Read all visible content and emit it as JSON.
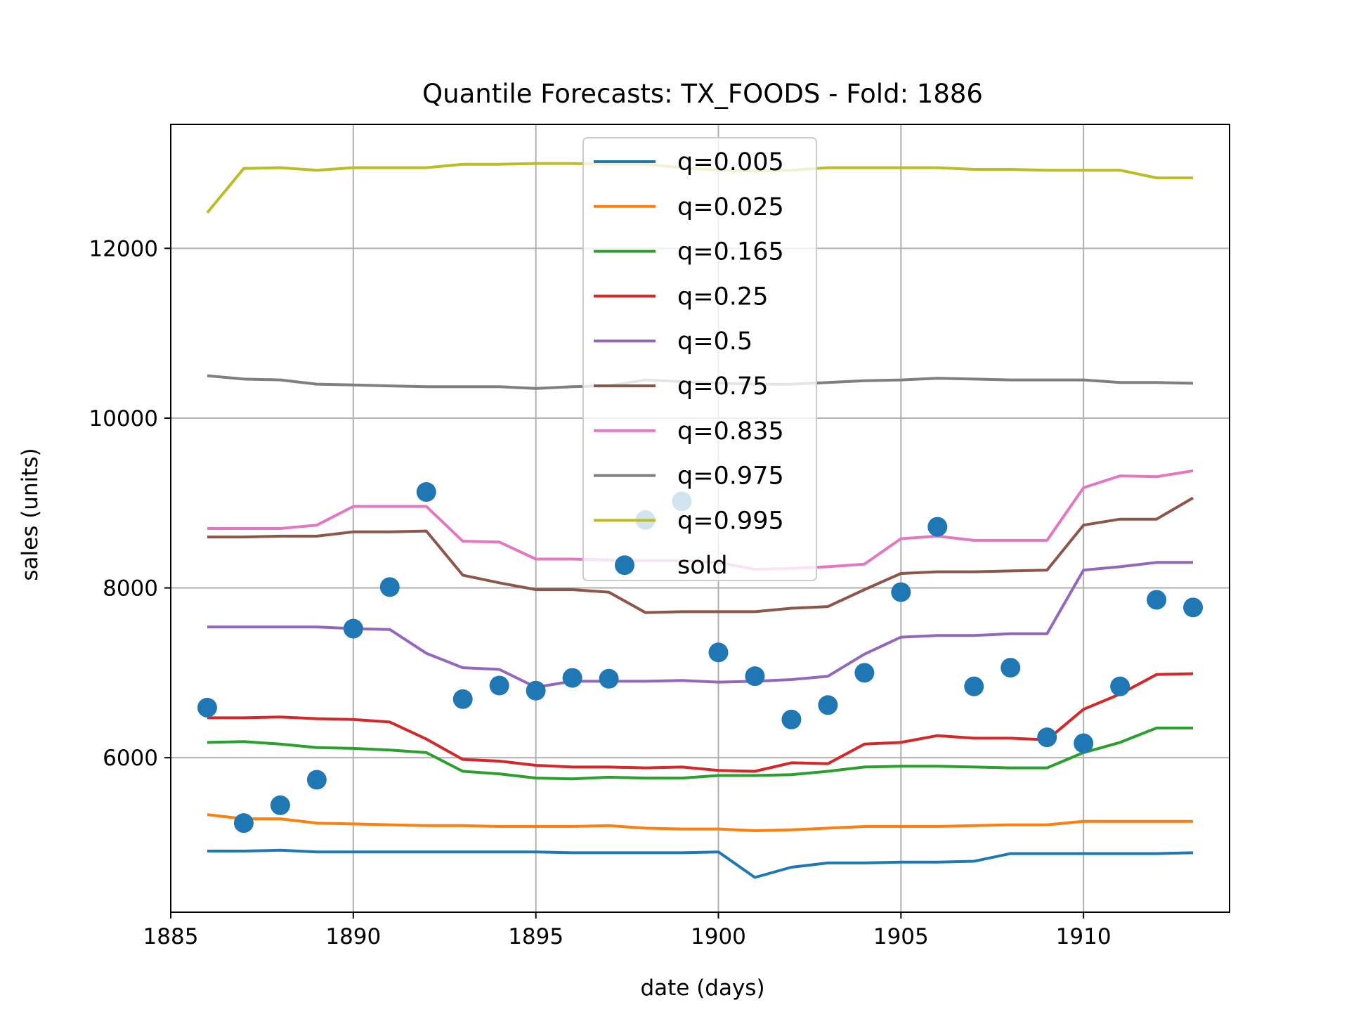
{
  "chart_data": {
    "type": "line",
    "title": "Quantile Forecasts: TX_FOODS - Fold: 1886",
    "xlabel": "date (days)",
    "ylabel": "sales (units)",
    "xlim": [
      1885,
      1914
    ],
    "ylim": [
      4180,
      13460
    ],
    "xticks": [
      1885,
      1890,
      1895,
      1900,
      1905,
      1910
    ],
    "yticks": [
      6000,
      8000,
      10000,
      12000
    ],
    "grid": true,
    "legend_position": "upper center",
    "x": [
      1886,
      1887,
      1888,
      1889,
      1890,
      1891,
      1892,
      1893,
      1894,
      1895,
      1896,
      1897,
      1898,
      1899,
      1900,
      1901,
      1902,
      1903,
      1904,
      1905,
      1906,
      1907,
      1908,
      1909,
      1910,
      1911,
      1912,
      1913
    ],
    "series": [
      {
        "name": "q=0.005",
        "color": "#1f77b4",
        "values": [
          4900,
          4900,
          4910,
          4890,
          4890,
          4890,
          4890,
          4890,
          4890,
          4890,
          4880,
          4880,
          4880,
          4880,
          4890,
          4590,
          4710,
          4760,
          4760,
          4770,
          4770,
          4780,
          4870,
          4870,
          4870,
          4870,
          4870,
          4880
        ]
      },
      {
        "name": "q=0.025",
        "color": "#ff7f0e",
        "values": [
          5330,
          5280,
          5280,
          5230,
          5220,
          5210,
          5200,
          5200,
          5190,
          5190,
          5190,
          5200,
          5170,
          5160,
          5160,
          5140,
          5150,
          5170,
          5190,
          5190,
          5190,
          5200,
          5210,
          5210,
          5250,
          5250,
          5250,
          5250
        ]
      },
      {
        "name": "q=0.165",
        "color": "#2ca02c",
        "values": [
          6180,
          6190,
          6160,
          6120,
          6110,
          6090,
          6060,
          5840,
          5810,
          5760,
          5750,
          5770,
          5760,
          5760,
          5790,
          5790,
          5800,
          5840,
          5890,
          5900,
          5900,
          5890,
          5880,
          5880,
          6060,
          6180,
          6350,
          6350
        ]
      },
      {
        "name": "q=0.25",
        "color": "#d62728",
        "values": [
          6470,
          6470,
          6480,
          6460,
          6450,
          6420,
          6220,
          5980,
          5960,
          5910,
          5890,
          5890,
          5880,
          5890,
          5850,
          5840,
          5940,
          5930,
          6160,
          6180,
          6260,
          6230,
          6230,
          6210,
          6570,
          6750,
          6980,
          6990
        ]
      },
      {
        "name": "q=0.5",
        "color": "#9467bd",
        "values": [
          7540,
          7540,
          7540,
          7540,
          7520,
          7510,
          7230,
          7060,
          7040,
          6830,
          6900,
          6900,
          6900,
          6910,
          6890,
          6900,
          6920,
          6960,
          7220,
          7420,
          7440,
          7440,
          7460,
          7460,
          8210,
          8250,
          8300,
          8300
        ]
      },
      {
        "name": "q=0.75",
        "color": "#8c564b",
        "values": [
          8600,
          8600,
          8610,
          8610,
          8660,
          8660,
          8670,
          8150,
          8060,
          7980,
          7980,
          7950,
          7710,
          7720,
          7720,
          7720,
          7760,
          7780,
          7980,
          8170,
          8190,
          8190,
          8200,
          8210,
          8740,
          8810,
          8810,
          9060
        ]
      },
      {
        "name": "q=0.835",
        "color": "#e377c2",
        "values": [
          8700,
          8700,
          8700,
          8740,
          8960,
          8960,
          8960,
          8550,
          8540,
          8340,
          8340,
          8330,
          8320,
          8320,
          8300,
          8220,
          8230,
          8250,
          8280,
          8580,
          8610,
          8560,
          8560,
          8560,
          9180,
          9320,
          9310,
          9380
        ]
      },
      {
        "name": "q=0.975",
        "color": "#7f7f7f",
        "values": [
          10500,
          10460,
          10450,
          10400,
          10390,
          10380,
          10370,
          10370,
          10370,
          10350,
          10370,
          10380,
          10450,
          10430,
          10410,
          10400,
          10400,
          10420,
          10440,
          10450,
          10470,
          10460,
          10450,
          10450,
          10450,
          10420,
          10420,
          10410
        ]
      },
      {
        "name": "q=0.995",
        "color": "#bcbd22",
        "values": [
          12420,
          12940,
          12950,
          12920,
          12950,
          12950,
          12950,
          12990,
          12990,
          13000,
          13000,
          12990,
          12990,
          12950,
          12920,
          12910,
          12920,
          12950,
          12950,
          12950,
          12950,
          12930,
          12930,
          12920,
          12920,
          12920,
          12830,
          12830
        ]
      }
    ],
    "scatter": {
      "name": "sold",
      "color": "#1f77b4",
      "x": [
        1886,
        1887,
        1888,
        1889,
        1890,
        1891,
        1892,
        1893,
        1894,
        1895,
        1896,
        1897,
        1898,
        1899,
        1900,
        1901,
        1902,
        1903,
        1904,
        1905,
        1906,
        1907,
        1908,
        1909,
        1910,
        1911,
        1912,
        1913
      ],
      "y": [
        6590,
        5230,
        5440,
        5740,
        7520,
        8010,
        9130,
        6690,
        6850,
        6790,
        6940,
        6930,
        8800,
        9020,
        7240,
        6960,
        6450,
        6620,
        7000,
        7950,
        8720,
        6840,
        7060,
        6240,
        6170,
        6840,
        7860,
        7770
      ]
    }
  }
}
